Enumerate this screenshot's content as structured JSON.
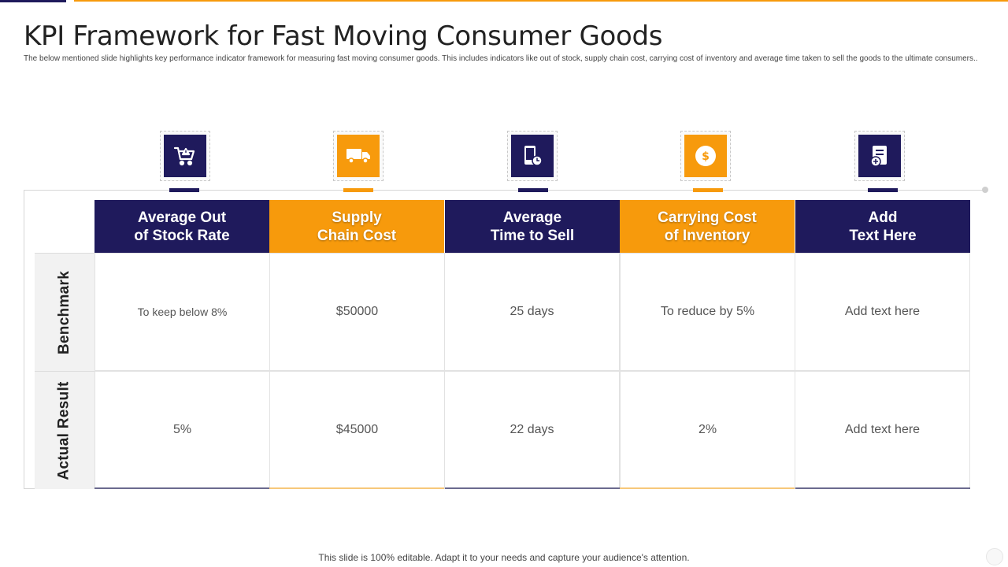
{
  "colors": {
    "navy": "#1f1a5c",
    "orange": "#f79a0c"
  },
  "slide": {
    "title": "KPI Framework for Fast Moving Consumer Goods",
    "subtitle": "The below mentioned slide highlights key performance indicator framework for measuring fast moving consumer goods. This includes indicators like out of stock, supply chain cost, carrying cost of inventory and average time taken to sell the goods to the ultimate consumers..",
    "footer": "This slide is 100% editable. Adapt it to your needs and capture your audience's attention."
  },
  "columns": [
    {
      "header": "Average Out\nof Stock Rate",
      "icon": "shopping-cart-warning-icon",
      "theme": "navy",
      "benchmark": "To keep below 8%",
      "actual": "5%"
    },
    {
      "header": "Supply\nChain Cost",
      "icon": "delivery-truck-icon",
      "theme": "orange",
      "benchmark": "$50000",
      "actual": "$45000"
    },
    {
      "header": "Average\nTime to Sell",
      "icon": "mobile-clock-icon",
      "theme": "navy",
      "benchmark": "25 days",
      "actual": "22 days"
    },
    {
      "header": "Carrying Cost\nof Inventory",
      "icon": "dollar-coin-icon",
      "theme": "orange",
      "benchmark": "To reduce by 5%",
      "actual": "2%"
    },
    {
      "header": "Add\nText Here",
      "icon": "document-add-icon",
      "theme": "navy",
      "benchmark": "Add text here",
      "actual": "Add text here"
    }
  ],
  "rows": {
    "benchmark_label": "Benchmark",
    "actual_label": "Actual Result"
  }
}
